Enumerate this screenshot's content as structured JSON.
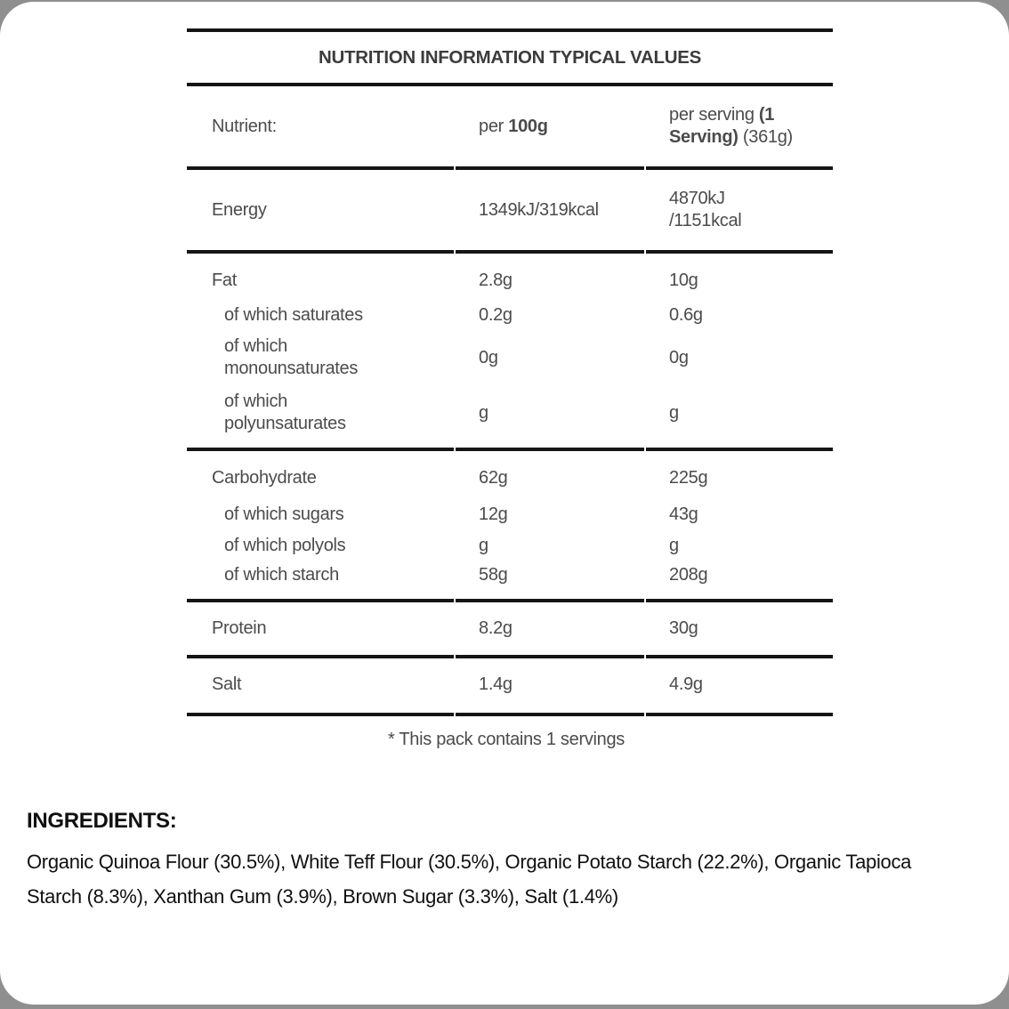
{
  "page": {
    "background_color": "#8f8f8f",
    "card_color": "#ffffff",
    "border_color": "#151515",
    "text_color": "#4b4b4b"
  },
  "table": {
    "title": "NUTRITION INFORMATION TYPICAL VALUES",
    "header": {
      "nutrient_label": "Nutrient:",
      "per100_prefix": "per ",
      "per100_bold": "100g",
      "serving_prefix": "per serving ",
      "serving_bold": "(1 Serving)",
      "serving_suffix": " (361g)"
    },
    "rows": [
      {
        "label": "Energy",
        "per100": "1349kJ/319kcal",
        "perServing": "4870kJ\n/1151kcal"
      },
      {
        "label": "Fat",
        "per100": "2.8g",
        "perServing": "10g"
      },
      {
        "label": "of which saturates",
        "per100": "0.2g",
        "perServing": "0.6g"
      },
      {
        "label": "of which\nmonounsaturates",
        "per100": "0g",
        "perServing": "0g"
      },
      {
        "label": "of which\npolyunsaturates",
        "per100": "g",
        "perServing": "g"
      },
      {
        "label": "Carbohydrate",
        "per100": "62g",
        "perServing": "225g"
      },
      {
        "label": "of which sugars",
        "per100": "12g",
        "perServing": "43g"
      },
      {
        "label": "of which polyols",
        "per100": "g",
        "perServing": "g"
      },
      {
        "label": "of which starch",
        "per100": "58g",
        "perServing": "208g"
      },
      {
        "label": "Protein",
        "per100": "8.2g",
        "perServing": "30g"
      },
      {
        "label": "Salt",
        "per100": "1.4g",
        "perServing": "4.9g"
      }
    ],
    "footnote": "* This pack contains 1 servings"
  },
  "ingredients": {
    "heading": "INGREDIENTS:",
    "text": "Organic Quinoa Flour (30.5%), White Teff Flour (30.5%), Organic Potato Starch (22.2%), Organic Tapioca Starch (8.3%), Xanthan Gum (3.9%), Brown Sugar (3.3%), Salt (1.4%)"
  }
}
